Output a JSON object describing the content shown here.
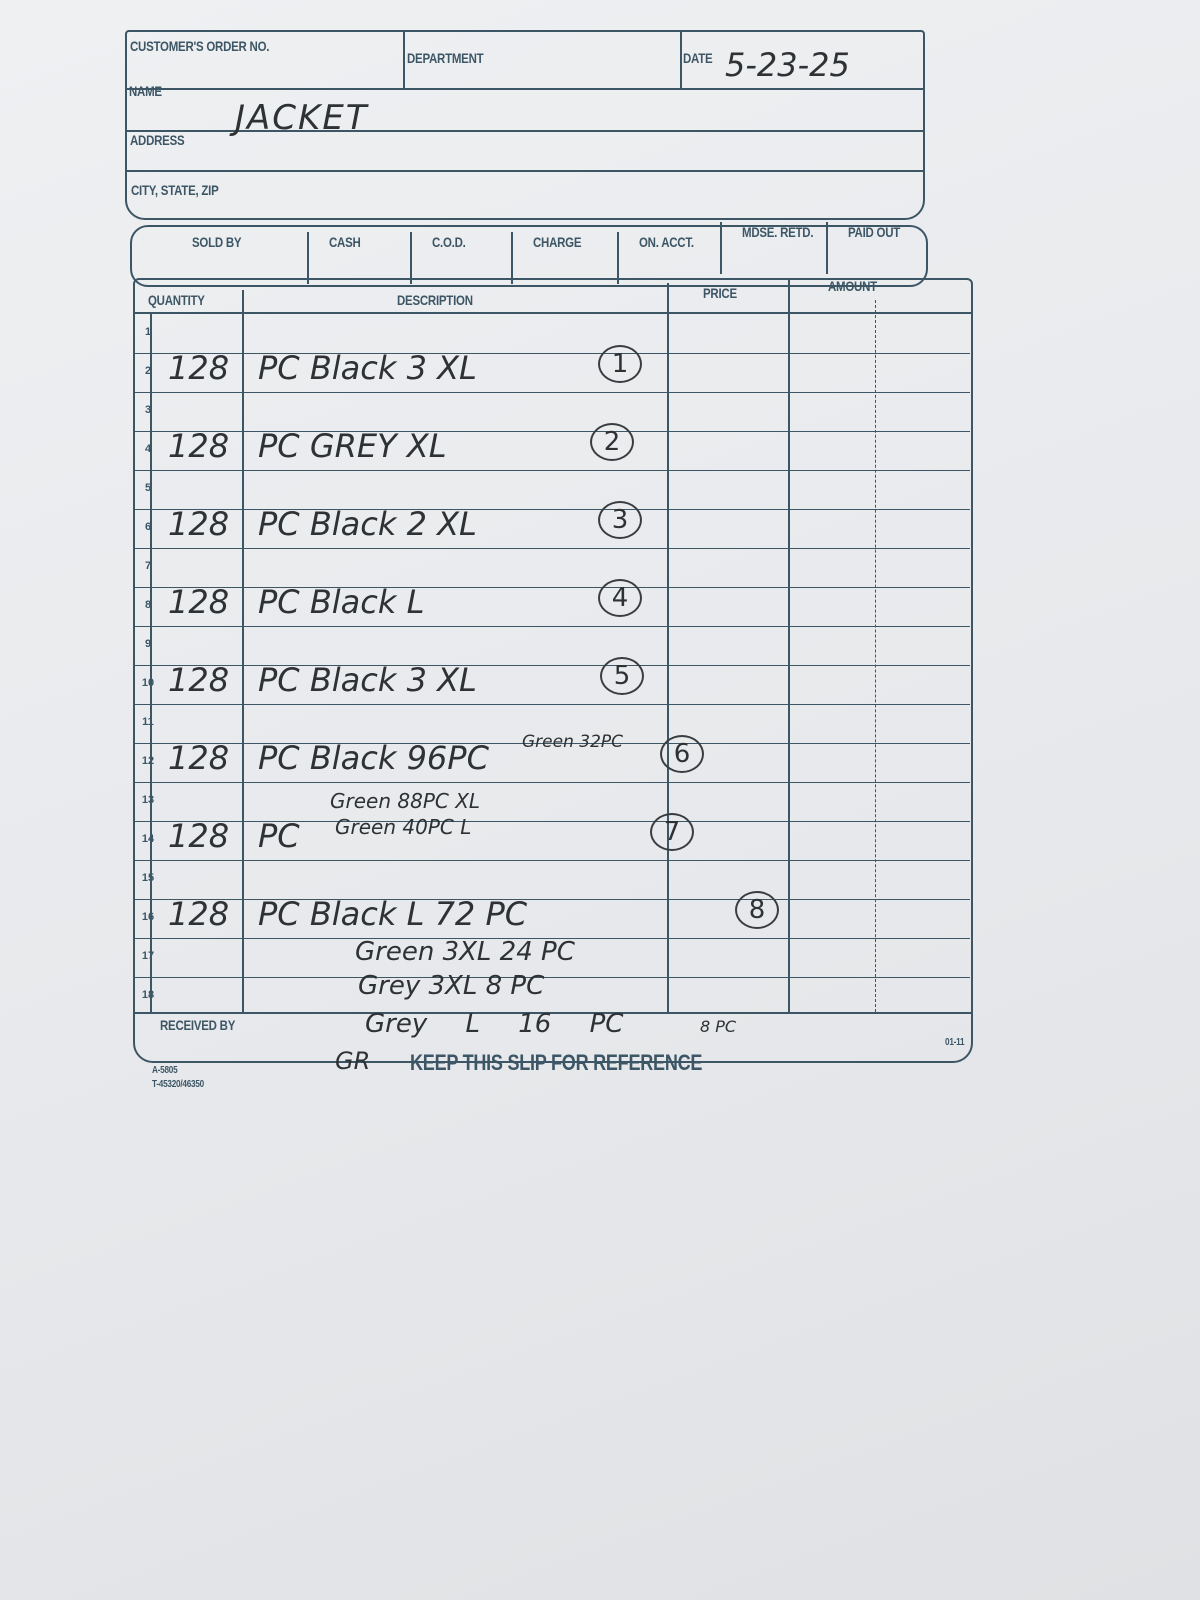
{
  "form": {
    "customer_order_no_label": "CUSTOMER'S ORDER NO.",
    "department_label": "DEPARTMENT",
    "date_label": "DATE",
    "date_value": "5-23-25",
    "name_label": "NAME",
    "name_value": "JACKET",
    "address_label": "ADDRESS",
    "city_label": "CITY, STATE, ZIP",
    "payment_headers": [
      "SOLD BY",
      "CASH",
      "C.O.D.",
      "CHARGE",
      "ON. ACCT.",
      "MDSE. RETD.",
      "PAID OUT"
    ],
    "table_headers": {
      "quantity": "QUANTITY",
      "description": "DESCRIPTION",
      "price": "PRICE",
      "amount": "AMOUNT"
    },
    "row_numbers": [
      "1",
      "2",
      "3",
      "4",
      "5",
      "6",
      "7",
      "8",
      "9",
      "10",
      "11",
      "12",
      "13",
      "14",
      "15",
      "16",
      "17",
      "18"
    ],
    "received_by_label": "RECEIVED BY",
    "footer_text": "KEEP THIS SLIP FOR REFERENCE",
    "form_code": "A-5805",
    "form_code_2": "T-45320/46350",
    "revision": "01-11"
  },
  "line_items": [
    {
      "row": 2,
      "qty": "128",
      "desc": "PC Black 3 XL",
      "mark": "1"
    },
    {
      "row": 4,
      "qty": "128",
      "desc": "PC GREY XL",
      "mark": "2"
    },
    {
      "row": 6,
      "qty": "128",
      "desc": "PC Black 2 XL",
      "mark": "3"
    },
    {
      "row": 8,
      "qty": "128",
      "desc": "PC Black L",
      "mark": "4"
    },
    {
      "row": 10,
      "qty": "128",
      "desc": "PC Black 3 XL",
      "mark": "5"
    },
    {
      "row": 12,
      "qty": "128",
      "desc": "PC Black 96PC",
      "desc_extra": "Green 32PC",
      "mark": "6"
    },
    {
      "row": 14,
      "qty": "128",
      "desc": "PC",
      "desc_extra": "Green 88PC XL",
      "desc_extra2": "Green 40PC L",
      "mark": "7"
    },
    {
      "row": 16,
      "qty": "128",
      "desc": "PC Black L 72 PC",
      "mark": "8"
    }
  ],
  "extra_lines": [
    "Green 3XL 24 PC",
    "Grey 3XL 8 PC",
    "Grey L 16 PC",
    "8 PC",
    "GR"
  ]
}
